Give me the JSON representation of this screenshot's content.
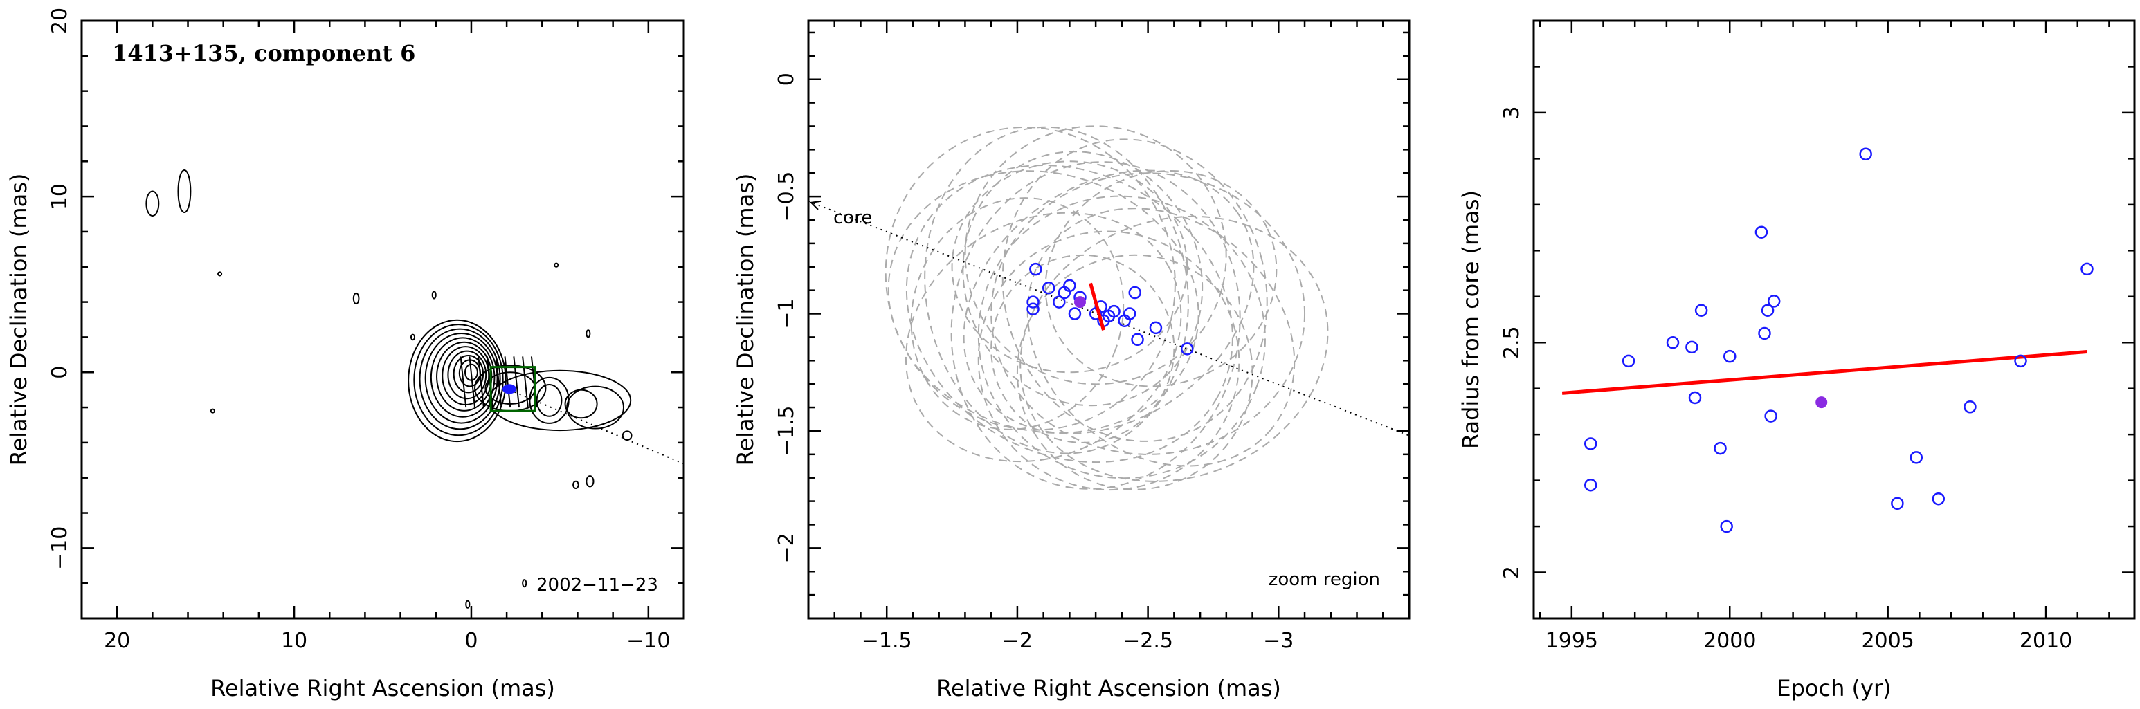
{
  "chart_data": [
    {
      "type": "contour",
      "title": "1413+135, component 6",
      "xlabel": "Relative Right Ascension (mas)",
      "ylabel": "Relative Declination (mas)",
      "xlim": [
        22,
        -12
      ],
      "ylim": [
        -14,
        20
      ],
      "xticks": [
        20,
        10,
        0,
        -10
      ],
      "yticks": [
        -10,
        0,
        10,
        20
      ],
      "epoch_label": "2002−11−23",
      "component": {
        "x": -2.15,
        "y": -0.95
      },
      "zoom_box": {
        "x0": -1.1,
        "x1": -3.6,
        "y0": -2.2,
        "y1": 0.3
      },
      "axis_line": {
        "x0": -1.0,
        "y0": -0.5,
        "x1": -12.0,
        "y1": -5.2
      },
      "colors": {
        "contours": "#000000",
        "zoom_box": "#006400",
        "component": "#1a1aff"
      }
    },
    {
      "type": "scatter",
      "xlabel": "Relative Right Ascension (mas)",
      "ylabel": "Relative Declination (mas)",
      "xlim": [
        -1.2,
        -3.5
      ],
      "ylim": [
        -2.3,
        0.25
      ],
      "xticks": [
        -1.5,
        -2,
        -2.5,
        -3
      ],
      "yticks": [
        -2,
        -1.5,
        -1,
        -0.5,
        0
      ],
      "core_label": "core",
      "region_label": "zoom region",
      "axis_line": {
        "x0": -1.2,
        "y0": -0.52,
        "x1": -3.5,
        "y1": -1.52
      },
      "positions": [
        {
          "x": -2.07,
          "y": -0.81
        },
        {
          "x": -2.06,
          "y": -0.95
        },
        {
          "x": -2.06,
          "y": -0.98
        },
        {
          "x": -2.12,
          "y": -0.89
        },
        {
          "x": -2.16,
          "y": -0.95
        },
        {
          "x": -2.18,
          "y": -0.91
        },
        {
          "x": -2.2,
          "y": -0.88
        },
        {
          "x": -2.24,
          "y": -0.93
        },
        {
          "x": -2.22,
          "y": -1.0
        },
        {
          "x": -2.3,
          "y": -1.0
        },
        {
          "x": -2.32,
          "y": -0.97
        },
        {
          "x": -2.33,
          "y": -1.03
        },
        {
          "x": -2.35,
          "y": -1.01
        },
        {
          "x": -2.37,
          "y": -0.99
        },
        {
          "x": -2.41,
          "y": -1.03
        },
        {
          "x": -2.43,
          "y": -1.0
        },
        {
          "x": -2.45,
          "y": -0.91
        },
        {
          "x": -2.46,
          "y": -1.11
        },
        {
          "x": -2.53,
          "y": -1.06
        },
        {
          "x": -2.65,
          "y": -1.15
        }
      ],
      "mean_position": {
        "x": -2.24,
        "y": -0.95
      },
      "fit_segment": {
        "x0": -2.28,
        "y0": -0.87,
        "x1": -2.33,
        "y1": -1.07
      },
      "ellipses": [
        {
          "cx": -2.05,
          "cy": -0.85,
          "rx": 0.55,
          "ry": 0.65,
          "angle": -20
        },
        {
          "cx": -2.1,
          "cy": -0.95,
          "rx": 0.6,
          "ry": 0.55,
          "angle": 15
        },
        {
          "cx": -2.15,
          "cy": -0.9,
          "rx": 0.5,
          "ry": 0.7,
          "angle": -10
        },
        {
          "cx": -2.2,
          "cy": -1.0,
          "rx": 0.65,
          "ry": 0.6,
          "angle": 30
        },
        {
          "cx": -2.25,
          "cy": -0.85,
          "rx": 0.45,
          "ry": 0.55,
          "angle": -25
        },
        {
          "cx": -2.3,
          "cy": -1.05,
          "rx": 0.55,
          "ry": 0.7,
          "angle": 10
        },
        {
          "cx": -2.35,
          "cy": -0.95,
          "rx": 0.6,
          "ry": 0.5,
          "angle": -35
        },
        {
          "cx": -2.4,
          "cy": -1.1,
          "rx": 0.55,
          "ry": 0.6,
          "angle": 20
        },
        {
          "cx": -2.45,
          "cy": -0.9,
          "rx": 0.5,
          "ry": 0.65,
          "angle": -15
        },
        {
          "cx": -2.5,
          "cy": -1.0,
          "rx": 0.6,
          "ry": 0.6,
          "angle": 0
        },
        {
          "cx": -2.55,
          "cy": -1.1,
          "rx": 0.55,
          "ry": 0.5,
          "angle": 40
        },
        {
          "cx": -2.6,
          "cy": -1.15,
          "rx": 0.6,
          "ry": 0.55,
          "angle": -20
        },
        {
          "cx": -2.2,
          "cy": -0.8,
          "rx": 0.45,
          "ry": 0.45,
          "angle": 0
        },
        {
          "cx": -2.35,
          "cy": -1.2,
          "rx": 0.5,
          "ry": 0.55,
          "angle": 25
        },
        {
          "cx": -2.1,
          "cy": -1.1,
          "rx": 0.55,
          "ry": 0.5,
          "angle": -30
        },
        {
          "cx": -2.3,
          "cy": -0.75,
          "rx": 0.5,
          "ry": 0.55,
          "angle": 15
        },
        {
          "cx": -2.45,
          "cy": -1.25,
          "rx": 0.45,
          "ry": 0.5,
          "angle": -10
        },
        {
          "cx": -2.0,
          "cy": -1.0,
          "rx": 0.4,
          "ry": 0.5,
          "angle": 20
        },
        {
          "cx": -2.55,
          "cy": -0.85,
          "rx": 0.45,
          "ry": 0.45,
          "angle": -25
        },
        {
          "cx": -2.25,
          "cy": -1.15,
          "rx": 0.35,
          "ry": 0.4,
          "angle": 0
        }
      ],
      "colors": {
        "points": "#1a1aff",
        "mean": "#8a2be2",
        "fit": "#ff0000",
        "ellipses": "#aaaaaa"
      }
    },
    {
      "type": "scatter",
      "xlabel": "Epoch (yr)",
      "ylabel": "Radius from core (mas)",
      "xlim": [
        1993.8,
        2012.8
      ],
      "ylim": [
        1.9,
        3.2
      ],
      "xticks": [
        1995,
        2000,
        2005,
        2010
      ],
      "yticks": [
        2,
        2.5,
        3
      ],
      "points": [
        {
          "x": 1995.6,
          "y": 2.28
        },
        {
          "x": 1995.6,
          "y": 2.19
        },
        {
          "x": 1996.8,
          "y": 2.46
        },
        {
          "x": 1998.2,
          "y": 2.5
        },
        {
          "x": 1998.8,
          "y": 2.49
        },
        {
          "x": 1998.9,
          "y": 2.38
        },
        {
          "x": 1999.1,
          "y": 2.57
        },
        {
          "x": 1999.7,
          "y": 2.27
        },
        {
          "x": 2000.0,
          "y": 2.47
        },
        {
          "x": 1999.9,
          "y": 2.1
        },
        {
          "x": 2001.0,
          "y": 2.74
        },
        {
          "x": 2001.1,
          "y": 2.52
        },
        {
          "x": 2001.2,
          "y": 2.57
        },
        {
          "x": 2001.4,
          "y": 2.59
        },
        {
          "x": 2001.3,
          "y": 2.34
        },
        {
          "x": 2004.3,
          "y": 2.91
        },
        {
          "x": 2005.3,
          "y": 2.15
        },
        {
          "x": 2005.9,
          "y": 2.25
        },
        {
          "x": 2006.6,
          "y": 2.16
        },
        {
          "x": 2007.6,
          "y": 2.36
        },
        {
          "x": 2009.2,
          "y": 2.46
        },
        {
          "x": 2011.3,
          "y": 2.66
        }
      ],
      "mean_point": {
        "x": 2002.9,
        "y": 2.37
      },
      "fit": {
        "x0": 1994.7,
        "y0": 2.39,
        "x1": 2011.3,
        "y1": 2.48
      },
      "colors": {
        "points": "#1a1aff",
        "mean": "#8a2be2",
        "fit": "#ff0000"
      }
    }
  ]
}
